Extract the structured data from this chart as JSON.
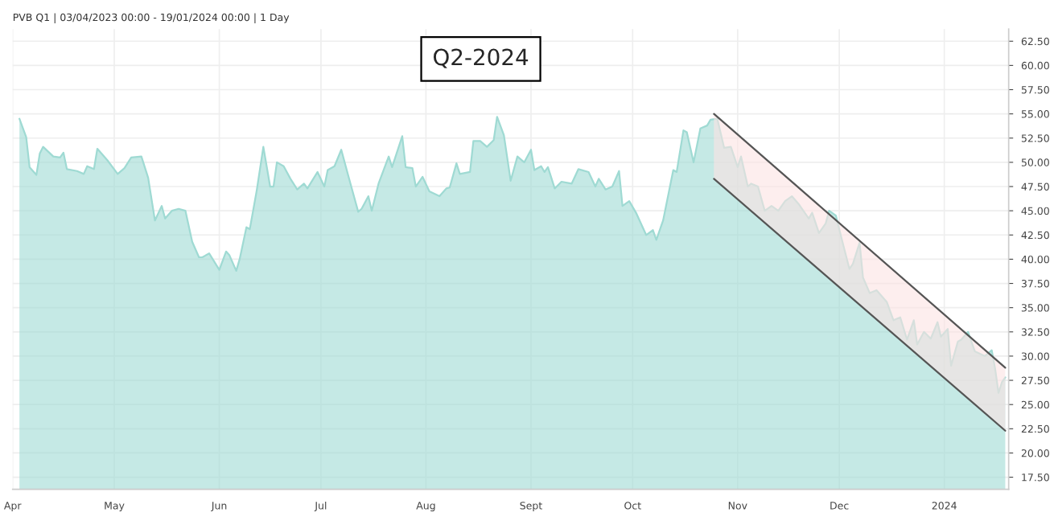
{
  "chart_data": {
    "type": "area",
    "title": "PVB Q1 | 03/04/2023 00:00 - 19/01/2024 00:00 | 1 Day",
    "annotations": [
      "Q2-2024"
    ],
    "x": [
      "2023-04-03",
      "2023-04-05",
      "2023-04-06",
      "2023-04-08",
      "2023-04-09",
      "2023-04-10",
      "2023-04-13",
      "2023-04-15",
      "2023-04-16",
      "2023-04-17",
      "2023-04-20",
      "2023-04-22",
      "2023-04-23",
      "2023-04-25",
      "2023-04-26",
      "2023-04-29",
      "2023-05-02",
      "2023-05-04",
      "2023-05-06",
      "2023-05-09",
      "2023-05-11",
      "2023-05-13",
      "2023-05-15",
      "2023-05-16",
      "2023-05-18",
      "2023-05-20",
      "2023-05-22",
      "2023-05-24",
      "2023-05-26",
      "2023-05-27",
      "2023-05-29",
      "2023-06-01",
      "2023-06-03",
      "2023-06-04",
      "2023-06-06",
      "2023-06-07",
      "2023-06-09",
      "2023-06-10",
      "2023-06-12",
      "2023-06-14",
      "2023-06-16",
      "2023-06-17",
      "2023-06-18",
      "2023-06-20",
      "2023-06-22",
      "2023-06-24",
      "2023-06-26",
      "2023-06-27",
      "2023-06-30",
      "2023-07-02",
      "2023-07-03",
      "2023-07-05",
      "2023-07-07",
      "2023-07-09",
      "2023-07-12",
      "2023-07-13",
      "2023-07-15",
      "2023-07-16",
      "2023-07-18",
      "2023-07-21",
      "2023-07-22",
      "2023-07-25",
      "2023-07-26",
      "2023-07-28",
      "2023-07-29",
      "2023-07-31",
      "2023-08-02",
      "2023-08-05",
      "2023-08-07",
      "2023-08-08",
      "2023-08-10",
      "2023-08-11",
      "2023-08-14",
      "2023-08-15",
      "2023-08-17",
      "2023-08-19",
      "2023-08-21",
      "2023-08-22",
      "2023-08-24",
      "2023-08-26",
      "2023-08-28",
      "2023-08-30",
      "2023-09-01",
      "2023-09-02",
      "2023-09-04",
      "2023-09-05",
      "2023-09-06",
      "2023-09-08",
      "2023-09-10",
      "2023-09-13",
      "2023-09-15",
      "2023-09-18",
      "2023-09-20",
      "2023-09-21",
      "2023-09-23",
      "2023-09-25",
      "2023-09-27",
      "2023-09-28",
      "2023-09-30",
      "2023-10-02",
      "2023-10-05",
      "2023-10-07",
      "2023-10-08",
      "2023-10-10",
      "2023-10-13",
      "2023-10-14",
      "2023-10-16",
      "2023-10-17",
      "2023-10-19",
      "2023-10-21",
      "2023-10-23",
      "2023-10-24",
      "2023-10-26",
      "2023-10-28",
      "2023-10-30",
      "2023-11-01",
      "2023-11-02",
      "2023-11-04",
      "2023-11-05",
      "2023-11-07",
      "2023-11-09",
      "2023-11-11",
      "2023-11-13",
      "2023-11-15",
      "2023-11-17",
      "2023-11-19",
      "2023-11-22",
      "2023-11-23",
      "2023-11-25",
      "2023-11-27",
      "2023-11-28",
      "2023-11-30",
      "2023-12-02",
      "2023-12-04",
      "2023-12-05",
      "2023-12-07",
      "2023-12-08",
      "2023-12-10",
      "2023-12-12",
      "2023-12-15",
      "2023-12-17",
      "2023-12-19",
      "2023-12-21",
      "2023-12-23",
      "2023-12-24",
      "2023-12-26",
      "2023-12-28",
      "2023-12-30",
      "2023-12-31",
      "2024-01-02",
      "2024-01-03",
      "2024-01-05",
      "2024-01-06",
      "2024-01-08",
      "2024-01-10",
      "2024-01-13",
      "2024-01-15",
      "2024-01-16",
      "2024-01-17",
      "2024-01-18",
      "2024-01-19"
    ],
    "series": [
      {
        "color": "#9fdad3",
        "values": [
          54.5,
          52.6,
          49.5,
          48.7,
          50.9,
          51.6,
          50.6,
          50.5,
          51.0,
          49.3,
          49.1,
          48.8,
          49.6,
          49.3,
          51.4,
          50.2,
          48.8,
          49.4,
          50.5,
          50.6,
          48.4,
          44.0,
          45.5,
          44.2,
          45.0,
          45.2,
          45.0,
          41.8,
          40.2,
          40.2,
          40.6,
          38.9,
          40.8,
          40.4,
          38.8,
          40.0,
          43.3,
          43.1,
          47.0,
          51.6,
          47.5,
          47.5,
          50.0,
          49.6,
          48.3,
          47.2,
          47.8,
          47.3,
          49.0,
          47.5,
          49.2,
          49.6,
          51.3,
          48.7,
          44.9,
          45.2,
          46.5,
          45.0,
          47.8,
          50.6,
          49.5,
          52.7,
          49.5,
          49.4,
          47.5,
          48.5,
          47.0,
          46.5,
          47.3,
          47.4,
          49.9,
          48.8,
          49.0,
          52.2,
          52.2,
          51.6,
          52.3,
          54.7,
          52.8,
          48.1,
          50.6,
          50.0,
          51.3,
          49.2,
          49.6,
          49.0,
          49.5,
          47.3,
          48.0,
          47.8,
          49.3,
          49.0,
          47.5,
          48.3,
          47.2,
          47.5,
          49.1,
          45.5,
          46.0,
          44.8,
          42.5,
          43.0,
          42.0,
          44.0,
          49.2,
          49.0,
          53.3,
          53.1,
          50.0,
          53.5,
          53.8,
          54.4,
          54.5,
          51.5,
          51.6,
          49.5,
          50.6,
          47.5,
          47.8,
          47.5,
          45.0,
          45.5,
          45.0,
          46.0,
          46.5,
          45.7,
          44.2,
          44.8,
          42.7,
          43.7,
          45.0,
          44.5,
          41.7,
          39.0,
          39.5,
          41.7,
          38.1,
          36.5,
          36.8,
          35.6,
          33.7,
          34.0,
          31.7,
          33.7,
          31.2,
          32.5,
          31.8,
          33.5,
          32.0,
          32.8,
          29.0,
          31.5,
          31.7,
          32.5,
          30.5,
          30.0,
          30.6,
          28.7,
          26.2,
          27.3,
          27.8
        ]
      },
      {
        "type": "line",
        "color": "#555555",
        "x": [
          "2023-10-25",
          "2024-01-19"
        ],
        "values": [
          55.0,
          28.8
        ]
      },
      {
        "type": "line",
        "color": "#555555",
        "x": [
          "2023-10-25",
          "2024-01-19"
        ],
        "values": [
          48.3,
          22.3
        ],
        "lower": [
          48.3,
          22.3
        ],
        "upper": [
          55.0,
          28.8
        ]
      }
    ],
    "xlim": [
      "2023-04-01",
      "2024-01-20"
    ],
    "xticks": [
      {
        "value": "2023-04-01",
        "label": "Apr"
      },
      {
        "value": "2023-05-01",
        "label": "May"
      },
      {
        "value": "2023-06-01",
        "label": "Jun"
      },
      {
        "value": "2023-07-01",
        "label": "Jul"
      },
      {
        "value": "2023-08-01",
        "label": "Aug"
      },
      {
        "value": "2023-09-01",
        "label": "Sept"
      },
      {
        "value": "2023-10-01",
        "label": "Oct"
      },
      {
        "value": "2023-11-01",
        "label": "Nov"
      },
      {
        "value": "2023-12-01",
        "label": "Dec"
      },
      {
        "value": "2024-01-01",
        "label": "2024"
      }
    ],
    "ylim": [
      16.25,
      63.75
    ],
    "yticks": [
      {
        "value": 17.5,
        "label": "17.50"
      },
      {
        "value": 20,
        "label": "20.00"
      },
      {
        "value": 22.5,
        "label": "22.50"
      },
      {
        "value": 25,
        "label": "25.00"
      },
      {
        "value": 27.5,
        "label": "27.50"
      },
      {
        "value": 30,
        "label": "30.00"
      },
      {
        "value": 32.5,
        "label": "32.50"
      },
      {
        "value": 35,
        "label": "35.00"
      },
      {
        "value": 37.5,
        "label": "37.50"
      },
      {
        "value": 40,
        "label": "40.00"
      },
      {
        "value": 42.5,
        "label": "42.50"
      },
      {
        "value": 45,
        "label": "45.00"
      },
      {
        "value": 47.5,
        "label": "47.50"
      },
      {
        "value": 50,
        "label": "50.00"
      },
      {
        "value": 52.5,
        "label": "52.50"
      },
      {
        "value": 55,
        "label": "55.00"
      },
      {
        "value": 57.5,
        "label": "57.50"
      },
      {
        "value": 60,
        "label": "60.00"
      },
      {
        "value": 62.5,
        "label": "62.50"
      }
    ],
    "grid": true
  }
}
